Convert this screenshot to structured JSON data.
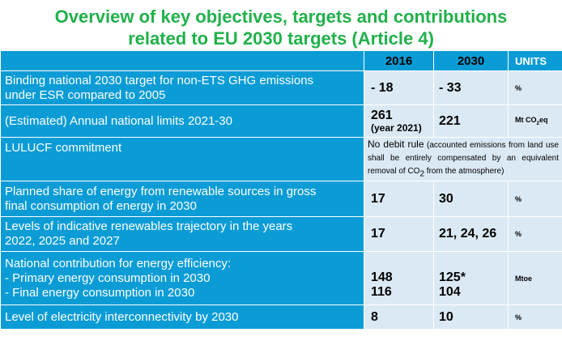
{
  "title": {
    "line1": "Overview of key objectives, targets and contributions",
    "line2": "related to EU 2030 targets (Article 4)"
  },
  "header": {
    "col2016": "2016",
    "col2030": "2030",
    "units": "UNITS"
  },
  "rows": [
    {
      "label_l1": "Binding national 2030 target for non-ETS GHG emissions",
      "label_l2": "under ESR compared to 2005",
      "v2016": "- 18",
      "v2030": "- 33",
      "unit": "%"
    },
    {
      "label": "(Estimated) Annual national limits 2021-30",
      "v2016": "261",
      "v2016_note": "(year 2021)",
      "v2030": "221",
      "unit_main": "Mt CO",
      "unit_sub": "2",
      "unit_tail": "eq"
    },
    {
      "label": "LULUCF commitment",
      "text_a": "No debit rule",
      "text_b": " (accounted emissions from land use shall be entirely compensated by an equivalent removal of CO",
      "text_sub": "2",
      "text_c": " from the atmosphere)"
    },
    {
      "label_l1": "Planned share of energy from renewable sources in gross",
      "label_l2": "final consumption of energy in 2030",
      "v2016": "17",
      "v2030": "30",
      "unit": "%"
    },
    {
      "label_l1": "Levels of indicative renewables trajectory in the years",
      "label_l2": "2022, 2025 and 2027",
      "v2016": "17",
      "v2030": "21, 24, 26",
      "unit": "%"
    },
    {
      "label_l1": "National contribution for energy efficiency:",
      "label_l2": "- Primary energy consumption in 2030",
      "label_l3": "- Final energy consumption in 2030",
      "v2016_a": "148",
      "v2016_b": "116",
      "v2030_a": "125*",
      "v2030_b": "104",
      "unit": "Mtoe"
    },
    {
      "label": "Level of electricity interconnectivity by 2030",
      "v2016": "8",
      "v2030": "10",
      "unit": "%"
    }
  ]
}
